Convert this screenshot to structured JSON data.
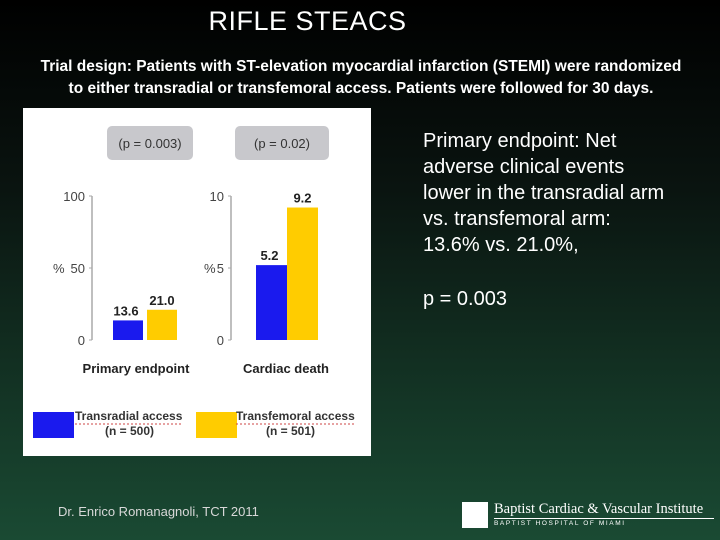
{
  "slide": {
    "title": "RIFLE STEACS",
    "subtitle_line1": "Trial design: Patients with ST-elevation myocardial infarction (STEMI) were randomized",
    "subtitle_line2": "to either transradial or transfemoral access. Patients were followed for 30 days.",
    "bullet_lines": [
      "Primary endpoint: Net",
      "adverse clinical events",
      "lower in the transradial arm",
      "vs. transfemoral arm:",
      "13.6% vs. 21.0%,"
    ],
    "p_value_text": "p = 0.003",
    "footer": "Dr. Enrico Romanagnoli, TCT 2011",
    "logo": {
      "name": "Baptist Cardiac & Vascular Institute",
      "sub": "BAPTIST HOSPITAL OF MIAMI"
    }
  },
  "colors": {
    "transradial": "#1a1aee",
    "transfemoral": "#ffcc00",
    "pbox": "#c8c8cc",
    "axis": "#aaaaaa"
  },
  "chart_data": [
    {
      "type": "bar",
      "categories": [
        "Primary endpoint"
      ],
      "xlabel": "Primary endpoint",
      "ylabel": "%",
      "ylim": [
        0,
        100
      ],
      "yticks": [
        "0",
        "50",
        "100"
      ],
      "annotation": "(p = 0.003)",
      "series": [
        {
          "name": "Transradial access",
          "values": [
            13.6
          ],
          "label": "13.6"
        },
        {
          "name": "Transfemoral access",
          "values": [
            21.0
          ],
          "label": "21.0"
        }
      ]
    },
    {
      "type": "bar",
      "categories": [
        "Cardiac death"
      ],
      "xlabel": "Cardiac death",
      "ylabel": "%",
      "ylim": [
        0,
        10
      ],
      "yticks": [
        "0",
        "5",
        "10"
      ],
      "annotation": "(p = 0.02)",
      "series": [
        {
          "name": "Transradial access",
          "values": [
            5.2
          ],
          "label": "5.2"
        },
        {
          "name": "Transfemoral access",
          "values": [
            9.2
          ],
          "label": "9.2"
        }
      ]
    }
  ],
  "legend": [
    {
      "label": "Transradial access",
      "n": "(n = 500)"
    },
    {
      "label": "Transfemoral access",
      "n": "(n = 501)"
    }
  ]
}
